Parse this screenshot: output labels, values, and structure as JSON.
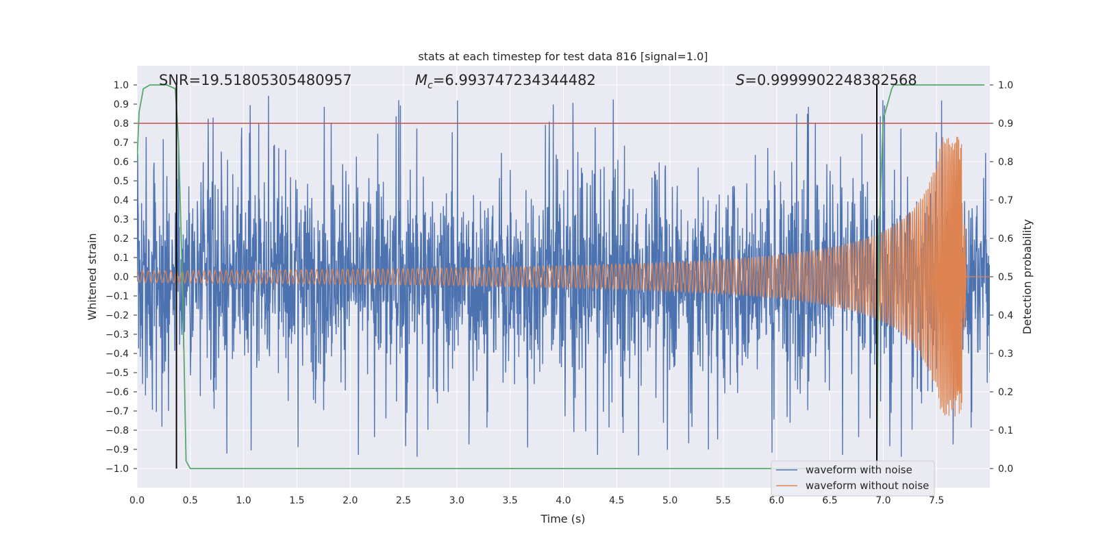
{
  "chart_data": {
    "type": "line",
    "title": "stats at each timestep for test data 816 [signal=1.0]",
    "xlabel": "Time (s)",
    "ylabel": "Whitened strain",
    "ylabel_right": "Detection probability",
    "xlim": [
      0.0,
      8.0
    ],
    "ylim": [
      -1.1,
      1.1
    ],
    "ylim_right": [
      -0.05,
      1.05
    ],
    "xticks": [
      "0.0",
      "0.5",
      "1.0",
      "1.5",
      "2.0",
      "2.5",
      "3.0",
      "3.5",
      "4.0",
      "4.5",
      "5.0",
      "5.5",
      "6.0",
      "6.5",
      "7.0",
      "7.5"
    ],
    "yticks": [
      "1.0",
      "0.9",
      "0.8",
      "0.7",
      "0.6",
      "0.5",
      "0.4",
      "0.3",
      "0.2",
      "0.1",
      "0.0",
      "−0.1",
      "−0.2",
      "−0.3",
      "−0.4",
      "−0.5",
      "−0.6",
      "−0.7",
      "−0.8",
      "−0.9",
      "−1.0"
    ],
    "yticks_right": [
      "1.0",
      "0.9",
      "0.8",
      "0.7",
      "0.6",
      "0.5",
      "0.4",
      "0.3",
      "0.2",
      "0.1",
      "0.0"
    ],
    "annotations": {
      "snr": "SNR=19.51805305480957",
      "mc_symbol": "M",
      "mc_sub": "c",
      "mc_value": "=6.993747234344482",
      "s_symbol": "S",
      "s_value": "=0.9999902248382568"
    },
    "legend": [
      "waveform with noise",
      "waveform without noise"
    ],
    "legend_position": "lower-right",
    "series": [
      {
        "name": "waveform with noise",
        "color": "#4c72b0",
        "kind": "noise",
        "t_range": [
          0.0,
          8.0
        ],
        "typical_amplitude": 0.45,
        "max_peak": 1.0,
        "min_peak": -1.0
      },
      {
        "name": "waveform without noise",
        "color": "#dd8452",
        "kind": "chirp",
        "t_start": 0.0,
        "t_merge": 7.74,
        "start_amplitude": 0.03,
        "peak_amplitude": 0.73,
        "peak_trough": -0.72,
        "ringdown_end": 7.78
      },
      {
        "name": "detection probability",
        "color": "#55a868",
        "axis": "right",
        "x": [
          0.0,
          0.02,
          0.06,
          0.12,
          0.28,
          0.36,
          0.39,
          0.43,
          0.46,
          0.5,
          6.9,
          6.94,
          6.96,
          7.0,
          7.08,
          7.1,
          7.25,
          7.95
        ],
        "y": [
          0.8,
          0.93,
          0.99,
          1.0,
          1.0,
          0.99,
          0.85,
          0.45,
          0.02,
          0.0,
          0.0,
          0.0,
          0.6,
          0.91,
          0.99,
          1.0,
          1.0,
          1.0
        ]
      },
      {
        "name": "threshold",
        "color": "#c44e52",
        "axis": "right",
        "value": 0.9
      },
      {
        "name": "event markers",
        "color": "#000000",
        "x": [
          0.37,
          6.94
        ],
        "y_range": [
          -1.0,
          1.0
        ]
      }
    ]
  }
}
